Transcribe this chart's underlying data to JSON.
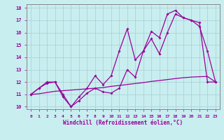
{
  "xlabel": "Windchill (Refroidissement éolien,°C)",
  "xlim": [
    0,
    23
  ],
  "ylim": [
    10,
    18
  ],
  "xticks": [
    0,
    1,
    2,
    3,
    4,
    5,
    6,
    7,
    8,
    9,
    10,
    11,
    12,
    13,
    14,
    15,
    16,
    17,
    18,
    19,
    20,
    21,
    22,
    23
  ],
  "yticks": [
    10,
    11,
    12,
    13,
    14,
    15,
    16,
    17,
    18
  ],
  "bg_color": "#c8eef0",
  "line_color": "#990099",
  "grid_color": "#aaccd0",
  "line1_x": [
    0,
    1,
    2,
    3,
    4,
    5,
    6,
    7,
    8,
    9,
    10,
    11,
    12,
    13,
    14,
    15,
    16,
    17,
    18,
    19,
    20,
    21,
    22,
    23
  ],
  "line1_y": [
    11.0,
    11.5,
    11.9,
    12.0,
    11.0,
    10.0,
    10.5,
    11.1,
    11.5,
    11.2,
    11.1,
    11.5,
    13.0,
    12.4,
    14.5,
    15.5,
    14.3,
    16.0,
    17.5,
    17.2,
    17.0,
    16.5,
    14.5,
    12.0
  ],
  "line2_x": [
    0,
    1,
    2,
    3,
    4,
    5,
    6,
    7,
    8,
    9,
    10,
    11,
    12,
    13,
    14,
    15,
    16,
    17,
    18,
    19,
    20,
    21,
    22,
    23
  ],
  "line2_y": [
    11.0,
    11.5,
    12.0,
    12.0,
    10.8,
    10.0,
    10.8,
    11.5,
    12.5,
    11.8,
    12.5,
    14.5,
    16.3,
    13.8,
    14.5,
    16.1,
    15.6,
    17.5,
    17.8,
    17.2,
    17.0,
    16.8,
    12.0,
    12.0
  ],
  "line3_x": [
    0,
    1,
    2,
    3,
    4,
    5,
    6,
    7,
    8,
    9,
    10,
    11,
    12,
    13,
    14,
    15,
    16,
    17,
    18,
    19,
    20,
    21,
    22,
    23
  ],
  "line3_y": [
    11.0,
    11.05,
    11.15,
    11.25,
    11.3,
    11.35,
    11.4,
    11.45,
    11.5,
    11.55,
    11.65,
    11.72,
    11.8,
    11.88,
    11.95,
    12.05,
    12.12,
    12.2,
    12.28,
    12.35,
    12.4,
    12.43,
    12.45,
    12.0
  ]
}
